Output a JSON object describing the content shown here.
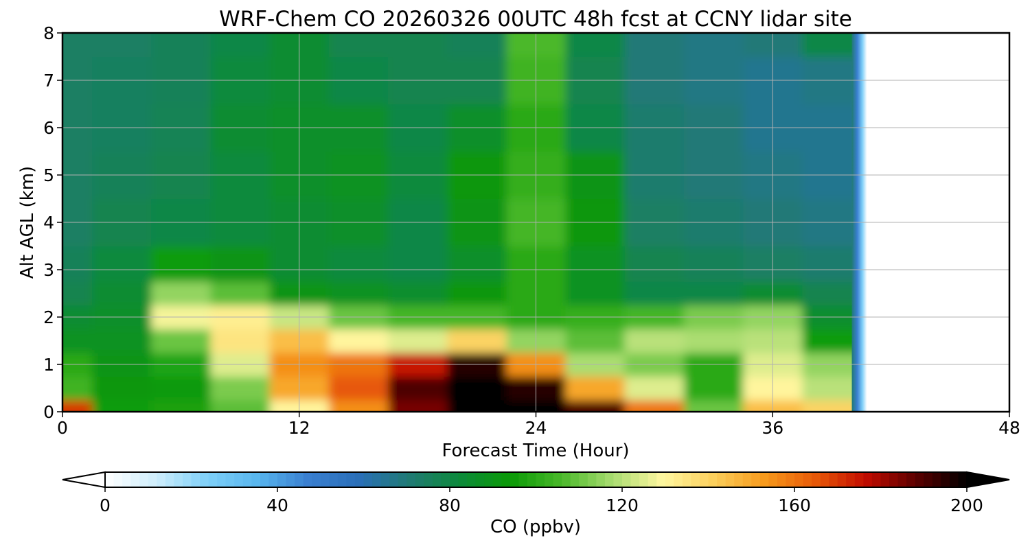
{
  "chart_data": {
    "type": "heatmap",
    "title": "WRF-Chem CO  20260326 00UTC 48h fcst at CCNY lidar site",
    "xlabel": "Forecast Time (Hour)",
    "ylabel": "Alt AGL (km)",
    "xlim": [
      0,
      48
    ],
    "ylim": [
      0,
      8
    ],
    "x_ticks": [
      "0",
      "12",
      "24",
      "36",
      "48"
    ],
    "y_ticks": [
      "0",
      "1",
      "2",
      "3",
      "4",
      "5",
      "6",
      "7",
      "8"
    ],
    "grid": true,
    "data_end_hour": 40.5,
    "x_hours": [
      0,
      3,
      6,
      9,
      12,
      15,
      18,
      21,
      24,
      27,
      30,
      33,
      36,
      39
    ],
    "z_km": [
      0,
      0.5,
      1,
      1.5,
      2,
      2.5,
      3,
      4,
      5,
      6,
      7,
      8
    ],
    "values": [
      [
        170,
        95,
        97,
        108,
        130,
        155,
        185,
        200,
        200,
        190,
        160,
        110,
        145,
        140
      ],
      [
        104,
        92,
        94,
        112,
        150,
        165,
        190,
        200,
        195,
        150,
        125,
        100,
        130,
        120
      ],
      [
        100,
        90,
        98,
        125,
        155,
        160,
        175,
        195,
        155,
        118,
        112,
        100,
        125,
        115
      ],
      [
        88,
        88,
        110,
        135,
        145,
        130,
        125,
        140,
        115,
        108,
        120,
        118,
        120,
        95
      ],
      [
        84,
        86,
        128,
        132,
        122,
        110,
        105,
        105,
        100,
        102,
        105,
        112,
        115,
        85
      ],
      [
        78,
        84,
        115,
        108,
        90,
        88,
        85,
        92,
        100,
        88,
        80,
        80,
        84,
        78
      ],
      [
        76,
        82,
        95,
        90,
        84,
        82,
        80,
        86,
        100,
        88,
        78,
        76,
        74,
        72
      ],
      [
        74,
        78,
        80,
        82,
        84,
        86,
        80,
        90,
        105,
        92,
        74,
        72,
        70,
        68
      ],
      [
        74,
        76,
        78,
        82,
        86,
        88,
        82,
        92,
        102,
        90,
        72,
        70,
        68,
        66
      ],
      [
        74,
        75,
        77,
        84,
        86,
        86,
        80,
        86,
        100,
        80,
        72,
        70,
        66,
        66
      ],
      [
        74,
        75,
        76,
        82,
        84,
        80,
        78,
        78,
        104,
        78,
        70,
        68,
        66,
        68
      ],
      [
        74,
        74,
        76,
        80,
        84,
        78,
        78,
        76,
        106,
        80,
        70,
        68,
        70,
        80
      ]
    ],
    "colorbar": {
      "label": "CO  (ppbv)",
      "min": 0,
      "max": 200,
      "extend": "both",
      "ticks": [
        "0",
        "40",
        "80",
        "120",
        "160",
        "200"
      ],
      "colors": [
        "#ffffff",
        "#cfeefc",
        "#7fd0f8",
        "#58b6ee",
        "#3a7fd0",
        "#2a6fb8",
        "#207a74",
        "#0c8a3a",
        "#0a9a06",
        "#4ab82a",
        "#a8dc70",
        "#fff7a0",
        "#fbcf5c",
        "#f79a1c",
        "#e85a08",
        "#c20c00",
        "#5a0000",
        "#000000"
      ]
    }
  }
}
